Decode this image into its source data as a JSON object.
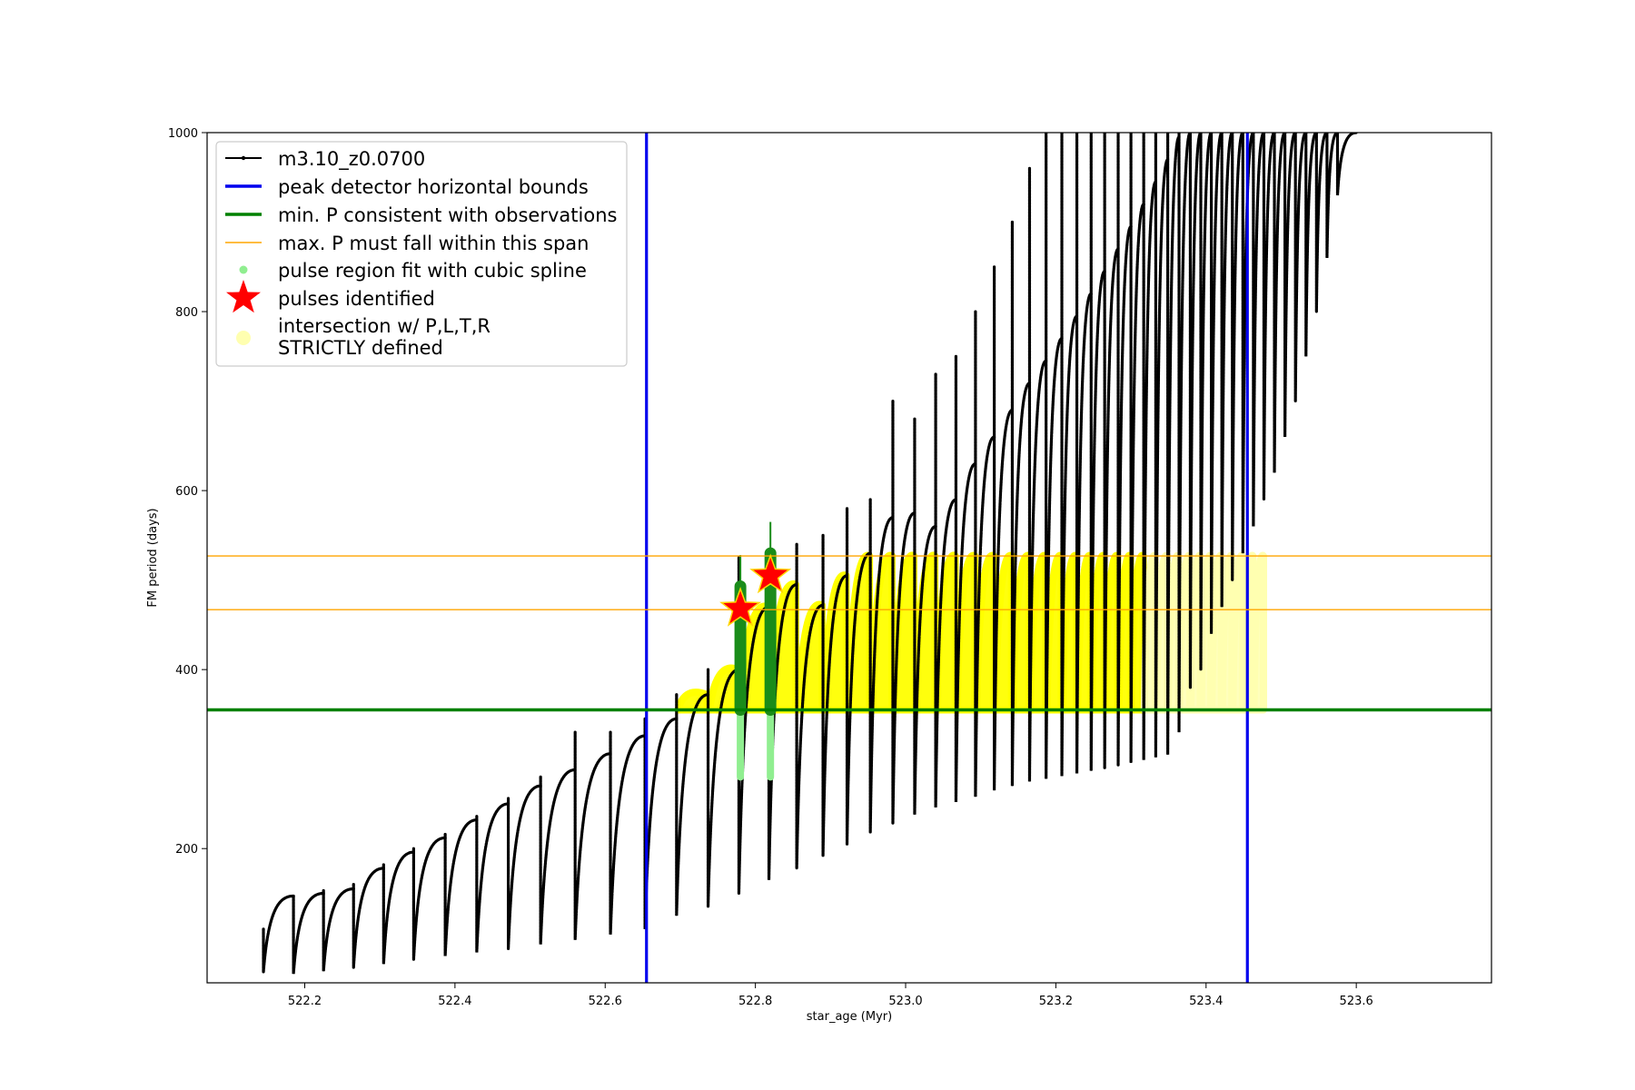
{
  "chart_data": {
    "type": "line",
    "title": "",
    "xlabel": "star_age (Myr)",
    "ylabel": "FM period (days)",
    "xlim": [
      522.07,
      523.78
    ],
    "ylim": [
      50,
      1000
    ],
    "xticks": [
      {
        "value": 522.2,
        "label": "522.2"
      },
      {
        "value": 522.4,
        "label": "522.4"
      },
      {
        "value": 522.6,
        "label": "522.6"
      },
      {
        "value": 522.8,
        "label": "522.8"
      },
      {
        "value": 523.0,
        "label": "523.0"
      },
      {
        "value": 523.2,
        "label": "523.2"
      },
      {
        "value": 523.4,
        "label": "523.4"
      },
      {
        "value": 523.6,
        "label": "523.6"
      }
    ],
    "yticks": [
      {
        "value": 200,
        "label": "200"
      },
      {
        "value": 400,
        "label": "400"
      },
      {
        "value": 600,
        "label": "600"
      },
      {
        "value": 800,
        "label": "800"
      },
      {
        "value": 1000,
        "label": "1000"
      }
    ],
    "grid": false,
    "legend_position": "top-left",
    "colors": {
      "model": "#000000",
      "bounds": "#0000ee",
      "min_period": "#008000",
      "max_span": "#ffa500",
      "spline": "#90ee90",
      "pulse_star": "#ff0000",
      "intersection": "#ffff00",
      "intersection_faint": "#ffffb0",
      "fit_dots": "#1a8c1a"
    },
    "legend": [
      {
        "key": "model",
        "label": "m3.10_z0.0700"
      },
      {
        "key": "bounds",
        "label": "peak detector horizontal bounds"
      },
      {
        "key": "min_period",
        "label": "min. P consistent with observations"
      },
      {
        "key": "max_span",
        "label": "max. P must fall within this span"
      },
      {
        "key": "spline",
        "label": "pulse region fit with cubic spline"
      },
      {
        "key": "pulses",
        "label": "pulses identified"
      },
      {
        "key": "intersection",
        "label_line1": "intersection w/ P,L,T,R",
        "label_line2": "STRICTLY defined"
      }
    ],
    "vertical_bounds": [
      522.655,
      523.455
    ],
    "min_period": 355,
    "max_period_span": [
      467,
      527
    ],
    "pulses_identified": [
      {
        "age": 522.78,
        "period": 468
      },
      {
        "age": 522.82,
        "period": 505
      }
    ],
    "model_cycles": [
      {
        "start": 522.145,
        "end": 522.185,
        "min": 62,
        "peak": 147,
        "spike": 110
      },
      {
        "start": 522.185,
        "end": 522.225,
        "min": 60,
        "peak": 150,
        "spike": 147
      },
      {
        "start": 522.225,
        "end": 522.265,
        "min": 63,
        "peak": 155,
        "spike": 153
      },
      {
        "start": 522.265,
        "end": 522.305,
        "min": 67,
        "peak": 178,
        "spike": 160
      },
      {
        "start": 522.305,
        "end": 522.345,
        "min": 71,
        "peak": 196,
        "spike": 182
      },
      {
        "start": 522.345,
        "end": 522.387,
        "min": 76,
        "peak": 212,
        "spike": 200
      },
      {
        "start": 522.387,
        "end": 522.429,
        "min": 80,
        "peak": 232,
        "spike": 216
      },
      {
        "start": 522.429,
        "end": 522.471,
        "min": 84,
        "peak": 250,
        "spike": 236
      },
      {
        "start": 522.471,
        "end": 522.514,
        "min": 88,
        "peak": 270,
        "spike": 256
      },
      {
        "start": 522.514,
        "end": 522.56,
        "min": 93,
        "peak": 288,
        "spike": 280
      },
      {
        "start": 522.56,
        "end": 522.607,
        "min": 98,
        "peak": 306,
        "spike": 330
      },
      {
        "start": 522.607,
        "end": 522.653,
        "min": 104,
        "peak": 326,
        "spike": 330
      },
      {
        "start": 522.653,
        "end": 522.695,
        "min": 110,
        "peak": 345,
        "spike": 345
      },
      {
        "start": 522.695,
        "end": 522.737,
        "min": 125,
        "peak": 372,
        "spike": 372
      },
      {
        "start": 522.737,
        "end": 522.778,
        "min": 135,
        "peak": 400,
        "spike": 400
      },
      {
        "start": 522.778,
        "end": 522.818,
        "min": 150,
        "peak": 470,
        "spike": 525
      },
      {
        "start": 522.818,
        "end": 522.855,
        "min": 165,
        "peak": 495,
        "spike": 505
      },
      {
        "start": 522.855,
        "end": 522.89,
        "min": 178,
        "peak": 472,
        "spike": 540
      },
      {
        "start": 522.89,
        "end": 522.922,
        "min": 192,
        "peak": 505,
        "spike": 550
      },
      {
        "start": 522.922,
        "end": 522.953,
        "min": 205,
        "peak": 530,
        "spike": 580
      },
      {
        "start": 522.953,
        "end": 522.983,
        "min": 218,
        "peak": 570,
        "spike": 590
      },
      {
        "start": 522.983,
        "end": 523.012,
        "min": 228,
        "peak": 575,
        "spike": 700
      },
      {
        "start": 523.012,
        "end": 523.04,
        "min": 238,
        "peak": 560,
        "spike": 680
      },
      {
        "start": 523.04,
        "end": 523.067,
        "min": 246,
        "peak": 590,
        "spike": 730
      },
      {
        "start": 523.067,
        "end": 523.093,
        "min": 252,
        "peak": 630,
        "spike": 750
      },
      {
        "start": 523.093,
        "end": 523.118,
        "min": 258,
        "peak": 660,
        "spike": 800
      },
      {
        "start": 523.118,
        "end": 523.142,
        "min": 265,
        "peak": 690,
        "spike": 850
      },
      {
        "start": 523.142,
        "end": 523.165,
        "min": 270,
        "peak": 720,
        "spike": 900
      },
      {
        "start": 523.165,
        "end": 523.187,
        "min": 275,
        "peak": 745,
        "spike": 960
      },
      {
        "start": 523.187,
        "end": 523.208,
        "min": 278,
        "peak": 770,
        "spike": 1000
      },
      {
        "start": 523.208,
        "end": 523.228,
        "min": 281,
        "peak": 795,
        "spike": 1000
      },
      {
        "start": 523.228,
        "end": 523.247,
        "min": 284,
        "peak": 820,
        "spike": 1000
      },
      {
        "start": 523.247,
        "end": 523.265,
        "min": 287,
        "peak": 845,
        "spike": 1000
      },
      {
        "start": 523.265,
        "end": 523.283,
        "min": 290,
        "peak": 870,
        "spike": 1000
      },
      {
        "start": 523.283,
        "end": 523.3,
        "min": 293,
        "peak": 895,
        "spike": 1000
      },
      {
        "start": 523.3,
        "end": 523.317,
        "min": 296,
        "peak": 920,
        "spike": 1000
      },
      {
        "start": 523.317,
        "end": 523.333,
        "min": 299,
        "peak": 945,
        "spike": 1000
      },
      {
        "start": 523.333,
        "end": 523.349,
        "min": 302,
        "peak": 970,
        "spike": 1000
      },
      {
        "start": 523.349,
        "end": 523.364,
        "min": 305,
        "peak": 995,
        "spike": 1000
      },
      {
        "start": 523.364,
        "end": 523.379,
        "min": 330,
        "peak": 1000,
        "spike": 1000
      },
      {
        "start": 523.379,
        "end": 523.393,
        "min": 380,
        "peak": 1000,
        "spike": 1000
      },
      {
        "start": 523.393,
        "end": 523.407,
        "min": 400,
        "peak": 1000,
        "spike": 1000
      },
      {
        "start": 523.407,
        "end": 523.421,
        "min": 440,
        "peak": 1000,
        "spike": 1000
      },
      {
        "start": 523.421,
        "end": 523.435,
        "min": 470,
        "peak": 1000,
        "spike": 1000
      },
      {
        "start": 523.435,
        "end": 523.449,
        "min": 500,
        "peak": 1000,
        "spike": 1000
      },
      {
        "start": 523.449,
        "end": 523.463,
        "min": 530,
        "peak": 1000,
        "spike": 1000
      },
      {
        "start": 523.463,
        "end": 523.477,
        "min": 560,
        "peak": 1000,
        "spike": 1000
      },
      {
        "start": 523.477,
        "end": 523.491,
        "min": 590,
        "peak": 1000,
        "spike": 1000
      },
      {
        "start": 523.491,
        "end": 523.505,
        "min": 620,
        "peak": 1000,
        "spike": 1000
      },
      {
        "start": 523.505,
        "end": 523.519,
        "min": 660,
        "peak": 1000,
        "spike": 1000
      },
      {
        "start": 523.519,
        "end": 523.533,
        "min": 700,
        "peak": 1000,
        "spike": 1000
      },
      {
        "start": 523.533,
        "end": 523.547,
        "min": 750,
        "peak": 1000,
        "spike": 1000
      },
      {
        "start": 523.547,
        "end": 523.561,
        "min": 800,
        "peak": 1000,
        "spike": 1000
      },
      {
        "start": 523.561,
        "end": 523.575,
        "min": 860,
        "peak": 1000,
        "spike": 1000
      },
      {
        "start": 523.575,
        "end": 523.6,
        "min": 930,
        "peak": 1000,
        "spike": 1000
      }
    ]
  }
}
